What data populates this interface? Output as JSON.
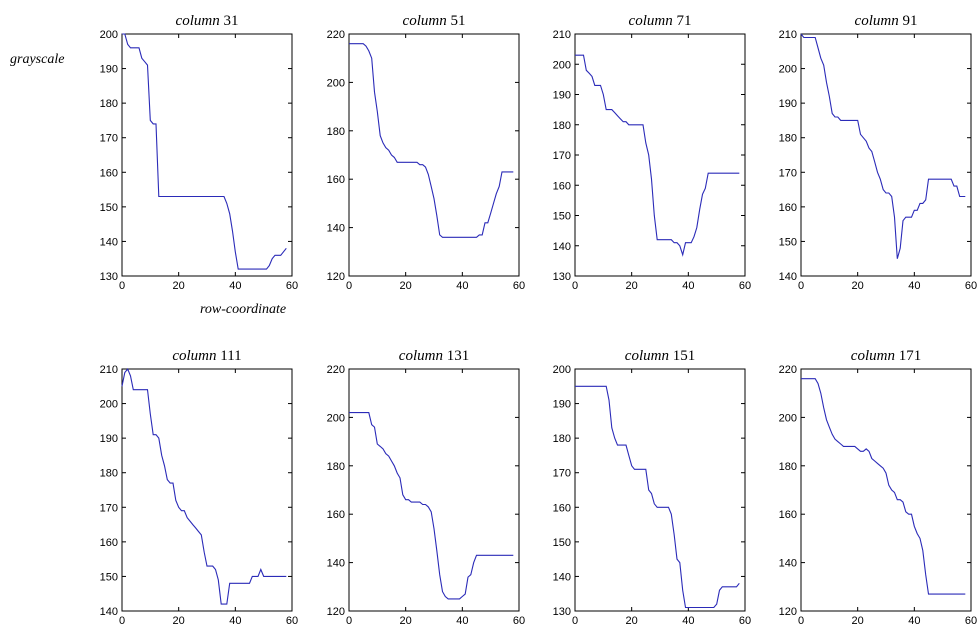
{
  "figure": {
    "ylabel": "grayscale",
    "xlabel": "row-coordinate"
  },
  "chart_data": [
    {
      "type": "line",
      "title": "column 31",
      "xlim": [
        0,
        60
      ],
      "ylim": [
        130,
        200
      ],
      "xticks": [
        0,
        20,
        40,
        60
      ],
      "yticks": [
        130,
        140,
        150,
        160,
        170,
        180,
        190,
        200
      ],
      "x": [
        0,
        1,
        2,
        3,
        4,
        5,
        6,
        7,
        8,
        9,
        10,
        11,
        12,
        13,
        14,
        15,
        20,
        25,
        30,
        35,
        36,
        37,
        38,
        39,
        40,
        41,
        42,
        43,
        44,
        45,
        46,
        47,
        48,
        49,
        50,
        51,
        52,
        53,
        54,
        55,
        56,
        57,
        58
      ],
      "y": [
        200,
        200,
        197,
        196,
        196,
        196,
        196,
        193,
        192,
        191,
        175,
        174,
        174,
        153,
        153,
        153,
        153,
        153,
        153,
        153,
        153,
        151,
        148,
        143,
        137,
        132,
        132,
        132,
        132,
        132,
        132,
        132,
        132,
        132,
        132,
        132,
        133,
        135,
        136,
        136,
        136,
        137,
        138
      ]
    },
    {
      "type": "line",
      "title": "column 51",
      "xlim": [
        0,
        60
      ],
      "ylim": [
        120,
        220
      ],
      "xticks": [
        0,
        20,
        40,
        60
      ],
      "yticks": [
        120,
        140,
        160,
        180,
        200,
        220
      ],
      "x": [
        0,
        1,
        2,
        3,
        4,
        5,
        6,
        7,
        8,
        9,
        10,
        11,
        12,
        13,
        14,
        15,
        16,
        17,
        18,
        19,
        20,
        21,
        22,
        23,
        24,
        25,
        26,
        27,
        28,
        29,
        30,
        31,
        32,
        33,
        34,
        35,
        36,
        37,
        38,
        39,
        40,
        41,
        42,
        43,
        44,
        45,
        46,
        47,
        48,
        49,
        50,
        51,
        52,
        53,
        54,
        55,
        56,
        57,
        58
      ],
      "y": [
        216,
        216,
        216,
        216,
        216,
        216,
        215,
        213,
        210,
        196,
        188,
        178,
        175,
        173,
        172,
        170,
        169,
        167,
        167,
        167,
        167,
        167,
        167,
        167,
        167,
        166,
        166,
        165,
        162,
        157,
        152,
        145,
        137,
        136,
        136,
        136,
        136,
        136,
        136,
        136,
        136,
        136,
        136,
        136,
        136,
        136,
        137,
        137,
        142,
        142,
        146,
        150,
        154,
        157,
        163,
        163,
        163,
        163,
        163
      ]
    },
    {
      "type": "line",
      "title": "column 71",
      "xlim": [
        0,
        60
      ],
      "ylim": [
        130,
        210
      ],
      "xticks": [
        0,
        20,
        40,
        60
      ],
      "yticks": [
        130,
        140,
        150,
        160,
        170,
        180,
        190,
        200,
        210
      ],
      "x": [
        0,
        1,
        2,
        3,
        4,
        5,
        6,
        7,
        8,
        9,
        10,
        11,
        12,
        13,
        14,
        15,
        16,
        17,
        18,
        19,
        20,
        21,
        22,
        23,
        24,
        25,
        26,
        27,
        28,
        29,
        30,
        31,
        32,
        33,
        34,
        35,
        36,
        37,
        38,
        39,
        40,
        41,
        42,
        43,
        44,
        45,
        46,
        47,
        48,
        49,
        50,
        51,
        52,
        53,
        54,
        55,
        56,
        57,
        58
      ],
      "y": [
        203,
        203,
        203,
        203,
        198,
        197,
        196,
        193,
        193,
        193,
        190,
        185,
        185,
        185,
        184,
        183,
        182,
        181,
        181,
        180,
        180,
        180,
        180,
        180,
        180,
        174,
        170,
        162,
        150,
        142,
        142,
        142,
        142,
        142,
        142,
        141,
        141,
        140,
        137,
        141,
        141,
        141,
        143,
        146,
        152,
        157,
        159,
        164,
        164,
        164,
        164,
        164,
        164,
        164,
        164,
        164,
        164,
        164,
        164
      ]
    },
    {
      "type": "line",
      "title": "column 91",
      "xlim": [
        0,
        60
      ],
      "ylim": [
        140,
        210
      ],
      "xticks": [
        0,
        20,
        40,
        60
      ],
      "yticks": [
        140,
        150,
        160,
        170,
        180,
        190,
        200,
        210
      ],
      "x": [
        0,
        1,
        2,
        3,
        4,
        5,
        6,
        7,
        8,
        9,
        10,
        11,
        12,
        13,
        14,
        15,
        16,
        17,
        18,
        19,
        20,
        21,
        22,
        23,
        24,
        25,
        26,
        27,
        28,
        29,
        30,
        31,
        32,
        33,
        34,
        35,
        36,
        37,
        38,
        39,
        40,
        41,
        42,
        43,
        44,
        45,
        46,
        47,
        48,
        49,
        50,
        51,
        52,
        53,
        54,
        55,
        56,
        57,
        58
      ],
      "y": [
        210,
        209,
        209,
        209,
        209,
        209,
        206,
        203,
        201,
        196,
        192,
        187,
        186,
        186,
        185,
        185,
        185,
        185,
        185,
        185,
        185,
        181,
        180,
        179,
        177,
        176,
        173,
        170,
        168,
        165,
        164,
        164,
        163,
        157,
        145,
        148,
        156,
        157,
        157,
        157,
        159,
        159,
        161,
        161,
        162,
        168,
        168,
        168,
        168,
        168,
        168,
        168,
        168,
        168,
        166,
        166,
        163,
        163,
        163
      ]
    },
    {
      "type": "line",
      "title": "column 111",
      "xlim": [
        0,
        60
      ],
      "ylim": [
        140,
        210
      ],
      "xticks": [
        0,
        20,
        40,
        60
      ],
      "yticks": [
        140,
        150,
        160,
        170,
        180,
        190,
        200,
        210
      ],
      "x": [
        0,
        1,
        2,
        3,
        4,
        5,
        6,
        7,
        8,
        9,
        10,
        11,
        12,
        13,
        14,
        15,
        16,
        17,
        18,
        19,
        20,
        21,
        22,
        23,
        24,
        25,
        26,
        27,
        28,
        29,
        30,
        31,
        32,
        33,
        34,
        35,
        36,
        37,
        38,
        39,
        40,
        41,
        42,
        43,
        44,
        45,
        46,
        47,
        48,
        49,
        50,
        51,
        52,
        53,
        54,
        55,
        56,
        57,
        58
      ],
      "y": [
        205,
        209,
        210,
        208,
        204,
        204,
        204,
        204,
        204,
        204,
        197,
        191,
        191,
        190,
        185,
        182,
        178,
        177,
        177,
        172,
        170,
        169,
        169,
        167,
        166,
        165,
        164,
        163,
        162,
        157,
        153,
        153,
        153,
        152,
        149,
        142,
        142,
        142,
        148,
        148,
        148,
        148,
        148,
        148,
        148,
        148,
        150,
        150,
        150,
        152,
        150,
        150,
        150,
        150,
        150,
        150,
        150,
        150,
        150
      ]
    },
    {
      "type": "line",
      "title": "column 131",
      "xlim": [
        0,
        60
      ],
      "ylim": [
        120,
        220
      ],
      "xticks": [
        0,
        20,
        40,
        60
      ],
      "yticks": [
        120,
        140,
        160,
        180,
        200,
        220
      ],
      "x": [
        0,
        1,
        2,
        3,
        4,
        5,
        6,
        7,
        8,
        9,
        10,
        11,
        12,
        13,
        14,
        15,
        16,
        17,
        18,
        19,
        20,
        21,
        22,
        23,
        24,
        25,
        26,
        27,
        28,
        29,
        30,
        31,
        32,
        33,
        34,
        35,
        36,
        37,
        38,
        39,
        40,
        41,
        42,
        43,
        44,
        45,
        46,
        47,
        48,
        49,
        50,
        51,
        52,
        53,
        54,
        55,
        56,
        57,
        58
      ],
      "y": [
        202,
        202,
        202,
        202,
        202,
        202,
        202,
        202,
        197,
        196,
        189,
        188,
        187,
        185,
        184,
        182,
        180,
        177,
        175,
        168,
        166,
        166,
        165,
        165,
        165,
        165,
        164,
        164,
        163,
        161,
        154,
        145,
        135,
        128,
        126,
        125,
        125,
        125,
        125,
        125,
        126,
        127,
        134,
        135,
        140,
        143,
        143,
        143,
        143,
        143,
        143,
        143,
        143,
        143,
        143,
        143,
        143,
        143,
        143
      ]
    },
    {
      "type": "line",
      "title": "column 151",
      "xlim": [
        0,
        60
      ],
      "ylim": [
        130,
        200
      ],
      "xticks": [
        0,
        20,
        40,
        60
      ],
      "yticks": [
        130,
        140,
        150,
        160,
        170,
        180,
        190,
        200
      ],
      "x": [
        0,
        1,
        2,
        3,
        4,
        5,
        6,
        7,
        8,
        9,
        10,
        11,
        12,
        13,
        14,
        15,
        16,
        17,
        18,
        19,
        20,
        21,
        22,
        23,
        24,
        25,
        26,
        27,
        28,
        29,
        30,
        31,
        32,
        33,
        34,
        35,
        36,
        37,
        38,
        39,
        40,
        41,
        42,
        43,
        44,
        45,
        46,
        47,
        48,
        49,
        50,
        51,
        52,
        53,
        54,
        55,
        56,
        57,
        58
      ],
      "y": [
        195,
        195,
        195,
        195,
        195,
        195,
        195,
        195,
        195,
        195,
        195,
        195,
        191,
        183,
        180,
        178,
        178,
        178,
        178,
        175,
        172,
        171,
        171,
        171,
        171,
        171,
        165,
        164,
        161,
        160,
        160,
        160,
        160,
        160,
        158,
        152,
        145,
        144,
        136,
        131,
        131,
        131,
        131,
        131,
        131,
        131,
        131,
        131,
        131,
        131,
        132,
        136,
        137,
        137,
        137,
        137,
        137,
        137,
        138
      ]
    },
    {
      "type": "line",
      "title": "column 171",
      "xlim": [
        0,
        60
      ],
      "ylim": [
        120,
        220
      ],
      "xticks": [
        0,
        20,
        40,
        60
      ],
      "yticks": [
        120,
        140,
        160,
        180,
        200,
        220
      ],
      "x": [
        0,
        1,
        2,
        3,
        4,
        5,
        6,
        7,
        8,
        9,
        10,
        11,
        12,
        13,
        14,
        15,
        16,
        17,
        18,
        19,
        20,
        21,
        22,
        23,
        24,
        25,
        26,
        27,
        28,
        29,
        30,
        31,
        32,
        33,
        34,
        35,
        36,
        37,
        38,
        39,
        40,
        41,
        42,
        43,
        44,
        45,
        46,
        47,
        48,
        49,
        50,
        51,
        52,
        53,
        54,
        55,
        56,
        57,
        58
      ],
      "y": [
        216,
        216,
        216,
        216,
        216,
        216,
        214,
        210,
        204,
        199,
        196,
        193,
        191,
        190,
        189,
        188,
        188,
        188,
        188,
        188,
        187,
        186,
        186,
        187,
        186,
        183,
        182,
        181,
        180,
        179,
        177,
        172,
        170,
        169,
        166,
        166,
        165,
        161,
        160,
        160,
        155,
        152,
        150,
        145,
        135,
        127,
        127,
        127,
        127,
        127,
        127,
        127,
        127,
        127,
        127,
        127,
        127,
        127,
        127
      ]
    }
  ]
}
